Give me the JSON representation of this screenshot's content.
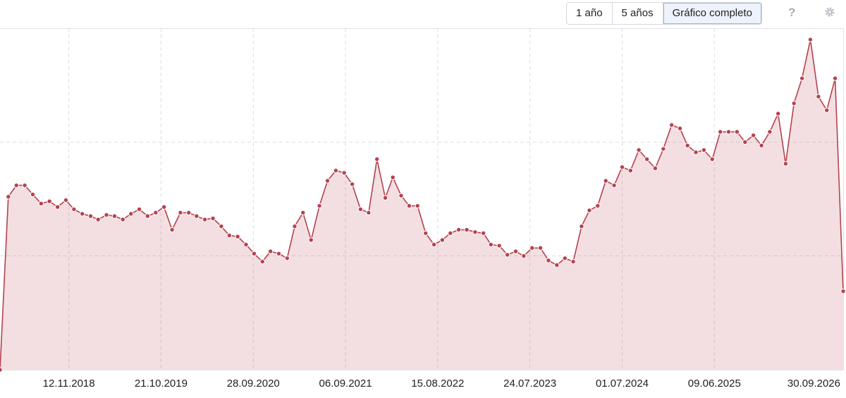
{
  "toolbar": {
    "buttons": [
      "1 año",
      "5 años",
      "Gráfico completo"
    ],
    "selected": 2,
    "help": "?"
  },
  "chart_data": {
    "type": "area-line",
    "color": "#b5424f",
    "x": [
      "2018-03-01",
      "2018-04-01",
      "2018-05-01",
      "2018-06-01",
      "2018-07-01",
      "2018-08-01",
      "2018-09-01",
      "2018-10-01",
      "2018-11-01",
      "2018-12-01",
      "2019-01-01",
      "2019-02-01",
      "2019-03-01",
      "2019-04-01",
      "2019-05-01",
      "2019-06-01",
      "2019-07-01",
      "2019-08-01",
      "2019-09-01",
      "2019-10-01",
      "2019-11-01",
      "2019-12-01",
      "2020-01-01",
      "2020-02-01",
      "2020-03-01",
      "2020-04-01",
      "2020-05-01",
      "2020-06-01",
      "2020-07-01",
      "2020-08-01",
      "2020-09-01",
      "2020-10-01",
      "2020-11-01",
      "2020-12-01",
      "2021-01-01",
      "2021-02-01",
      "2021-03-01",
      "2021-04-01",
      "2021-05-01",
      "2021-06-01",
      "2021-07-01",
      "2021-08-01",
      "2021-09-01",
      "2021-10-01",
      "2021-11-01",
      "2021-12-01",
      "2022-01-01",
      "2022-02-01",
      "2022-03-01",
      "2022-04-01",
      "2022-05-01",
      "2022-06-01",
      "2022-07-01",
      "2022-08-01",
      "2022-09-01",
      "2022-10-01",
      "2022-11-01",
      "2022-12-01",
      "2023-01-01",
      "2023-02-01",
      "2023-03-01",
      "2023-04-01",
      "2023-05-01",
      "2023-06-01",
      "2023-07-01",
      "2023-08-01",
      "2023-09-01",
      "2023-10-01",
      "2023-11-01",
      "2023-12-01",
      "2024-01-01",
      "2024-02-01",
      "2024-03-01",
      "2024-04-01",
      "2024-05-01",
      "2024-06-01",
      "2024-07-01",
      "2024-08-01",
      "2024-09-01",
      "2024-10-01",
      "2024-11-01",
      "2024-12-01",
      "2025-01-01",
      "2025-02-01",
      "2025-03-01",
      "2025-04-01",
      "2025-05-01",
      "2025-06-01",
      "2025-07-01",
      "2025-08-01",
      "2025-09-01",
      "2025-10-01",
      "2025-11-01",
      "2025-12-01",
      "2026-01-01",
      "2026-02-01",
      "2026-03-01",
      "2026-04-01",
      "2026-05-01",
      "2026-06-01",
      "2026-07-01",
      "2026-08-01",
      "2026-09-01",
      "2026-10-01"
    ],
    "values": [
      0,
      1.52,
      1.62,
      1.62,
      1.54,
      1.46,
      1.48,
      1.43,
      1.49,
      1.41,
      1.37,
      1.35,
      1.32,
      1.36,
      1.35,
      1.32,
      1.37,
      1.41,
      1.35,
      1.38,
      1.43,
      1.23,
      1.38,
      1.38,
      1.35,
      1.32,
      1.33,
      1.26,
      1.18,
      1.17,
      1.1,
      1.02,
      0.95,
      1.04,
      1.02,
      0.98,
      1.26,
      1.38,
      1.14,
      1.44,
      1.66,
      1.75,
      1.73,
      1.63,
      1.41,
      1.38,
      1.85,
      1.51,
      1.69,
      1.53,
      1.44,
      1.44,
      1.2,
      1.1,
      1.14,
      1.2,
      1.23,
      1.23,
      1.21,
      1.2,
      1.1,
      1.09,
      1.01,
      1.04,
      1.0,
      1.07,
      1.07,
      0.96,
      0.92,
      0.98,
      0.95,
      1.26,
      1.4,
      1.44,
      1.66,
      1.62,
      1.78,
      1.75,
      1.93,
      1.85,
      1.77,
      1.94,
      2.15,
      2.12,
      1.97,
      1.91,
      1.93,
      1.85,
      2.09,
      2.09,
      2.09,
      2.0,
      2.06,
      1.97,
      2.09,
      2.25,
      1.81,
      2.34,
      2.56,
      2.9,
      2.4,
      2.28,
      2.56,
      0.69
    ],
    "xlim": [
      "2018-03-01",
      "2026-10-01"
    ],
    "xticks": [
      {
        "value": "2018-11-12",
        "label": "12.11.2018"
      },
      {
        "value": "2019-10-21",
        "label": "21.10.2019"
      },
      {
        "value": "2020-09-28",
        "label": "28.09.2020"
      },
      {
        "value": "2021-09-06",
        "label": "06.09.2021"
      },
      {
        "value": "2022-08-15",
        "label": "15.08.2022"
      },
      {
        "value": "2023-07-24",
        "label": "24.07.2023"
      },
      {
        "value": "2024-07-01",
        "label": "01.07.2024"
      },
      {
        "value": "2025-06-09",
        "label": "09.06.2025"
      },
      {
        "value": "2026-09-30",
        "label": "30.09.2026"
      }
    ],
    "ylim": [
      0,
      3
    ],
    "yticks": [
      1,
      2
    ],
    "grid": true
  }
}
